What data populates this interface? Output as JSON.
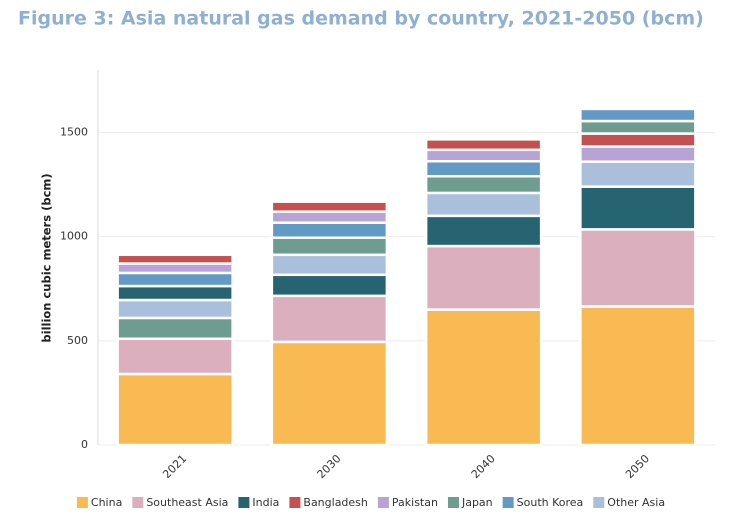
{
  "chart_data": {
    "type": "stacked_bar",
    "title": "Figure 3: Asia natural gas demand by country, 2021-2050 (bcm)",
    "y_label": "billion cubic meters (bcm)",
    "categories": [
      "2021",
      "2030",
      "2040",
      "2050"
    ],
    "series": [
      {
        "name": "China",
        "color": "#f9b953",
        "values": [
          341,
          495,
          650,
          665
        ]
      },
      {
        "name": "Southeast Asia",
        "color": "#dbafbd",
        "values": [
          169,
          221,
          305,
          370
        ]
      },
      {
        "name": "India",
        "color": "#256470",
        "values": [
          67,
          101,
          145,
          205
        ]
      },
      {
        "name": "Bangladesh",
        "color": "#c5504f",
        "values": [
          42,
          48,
          50,
          62
        ]
      },
      {
        "name": "Pakistan",
        "color": "#b8a3d6",
        "values": [
          45,
          53,
          55,
          73
        ]
      },
      {
        "name": "Japan",
        "color": "#6e9c8f",
        "values": [
          100,
          82,
          80,
          60
        ]
      },
      {
        "name": "South Korea",
        "color": "#6299c5",
        "values": [
          63,
          72,
          72,
          58
        ]
      },
      {
        "name": "Other Asia",
        "color": "#a9bfdb",
        "values": [
          86,
          96,
          110,
          120
        ]
      }
    ],
    "ylim": [
      0,
      1800
    ],
    "yticks": [
      0,
      500,
      1000,
      1500
    ],
    "grid": true
  }
}
